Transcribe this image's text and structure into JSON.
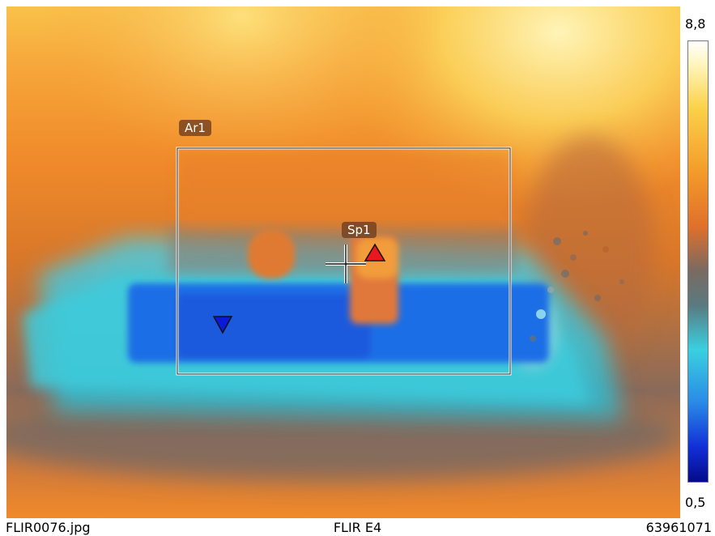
{
  "image": {
    "scene": "thermal camera image",
    "palette": "iron-rainbow",
    "colors": {
      "hot": "#fdf0a0",
      "warm": "#f07a1e",
      "mid": "#6e6e6e",
      "cool": "#40d4e0",
      "cold": "#1a5fe0",
      "coldest": "#050a9a"
    }
  },
  "measurements": {
    "area_label": "Ar1",
    "spot_label": "Sp1",
    "hot_marker": "red-triangle-up",
    "cold_marker": "blue-triangle-down",
    "crosshair": "crosshair-icon"
  },
  "scale": {
    "max": "8,8",
    "min": "0,5"
  },
  "footer": {
    "filename": "FLIR0076.jpg",
    "camera": "FLIR E4",
    "serial": "63961071"
  }
}
